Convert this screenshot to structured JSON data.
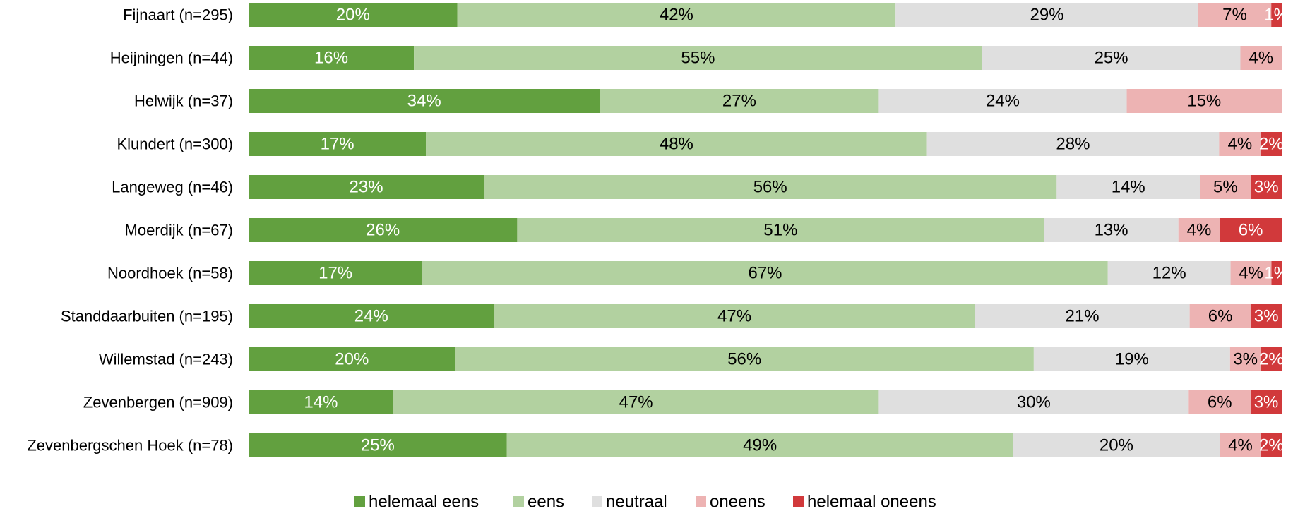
{
  "chart_data": {
    "type": "bar",
    "orientation": "horizontal",
    "stacked": true,
    "title": "",
    "xlabel": "",
    "ylabel": "",
    "xlim": [
      0,
      100
    ],
    "grid": false,
    "legend_position": "bottom",
    "categories": [
      "Fijnaart (n=295)",
      "Heijningen (n=44)",
      "Helwijk (n=37)",
      "Klundert (n=300)",
      "Langeweg (n=46)",
      "Moerdijk (n=67)",
      "Noordhoek (n=58)",
      "Standdaarbuiten (n=195)",
      "Willemstad (n=243)",
      "Zevenbergen (n=909)",
      "Zevenbergschen Hoek (n=78)"
    ],
    "series": [
      {
        "name": "helemaal eens",
        "color": "#62a03f",
        "label_color": "#ffffff",
        "values": [
          20,
          16,
          34,
          17,
          23,
          26,
          17,
          24,
          20,
          14,
          25
        ],
        "labels": [
          "20%",
          "16%",
          "34%",
          "17%",
          "23%",
          "26%",
          "17%",
          "24%",
          "20%",
          "14%",
          "25%"
        ]
      },
      {
        "name": "eens",
        "color": "#b2d1a0",
        "label_color": "#000000",
        "values": [
          42,
          55,
          27,
          48,
          56,
          51,
          67,
          47,
          56,
          47,
          49
        ],
        "labels": [
          "42%",
          "55%",
          "27%",
          "48%",
          "56%",
          "51%",
          "67%",
          "47%",
          "56%",
          "47%",
          "49%"
        ]
      },
      {
        "name": "neutraal",
        "color": "#dfdfdf",
        "label_color": "#000000",
        "values": [
          29,
          25,
          24,
          28,
          14,
          13,
          12,
          21,
          19,
          30,
          20
        ],
        "labels": [
          "29%",
          "25%",
          "24%",
          "28%",
          "14%",
          "13%",
          "12%",
          "21%",
          "19%",
          "30%",
          "20%"
        ]
      },
      {
        "name": "oneens",
        "color": "#edb3b3",
        "label_color": "#000000",
        "values": [
          7,
          4,
          15,
          4,
          5,
          4,
          4,
          6,
          3,
          6,
          4
        ],
        "labels": [
          "7%",
          "4%",
          "15%",
          "4%",
          "5%",
          "4%",
          "4%",
          "6%",
          "3%",
          "6%",
          "4%"
        ]
      },
      {
        "name": "helemaal oneens",
        "color": "#d1393b",
        "label_color": "#ffffff",
        "values": [
          1,
          0,
          0,
          2,
          3,
          6,
          1,
          3,
          2,
          3,
          2
        ],
        "labels": [
          "1%",
          "",
          "",
          "2%",
          "3%",
          "6%",
          "1%",
          "3%",
          "2%",
          "3%",
          "2%"
        ]
      }
    ]
  }
}
